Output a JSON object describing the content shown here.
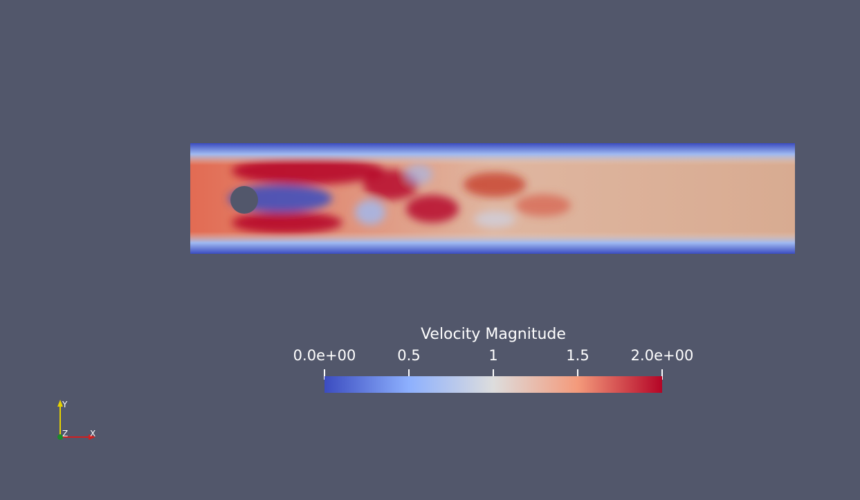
{
  "legend": {
    "title": "Velocity Magnitude",
    "ticks": [
      {
        "value": 0.0,
        "label": "0.0e+00"
      },
      {
        "value": 0.5,
        "label": "0.5"
      },
      {
        "value": 1.0,
        "label": "1"
      },
      {
        "value": 1.5,
        "label": "1.5"
      },
      {
        "value": 2.0,
        "label": "2.0e+00"
      }
    ],
    "range": [
      0,
      2
    ],
    "colors": {
      "low": "#3b4cc0",
      "mid": "#dddddd",
      "high": "#b40426"
    }
  },
  "axes": {
    "x": "X",
    "y": "Y",
    "z": "Z"
  },
  "background": "#52576b"
}
